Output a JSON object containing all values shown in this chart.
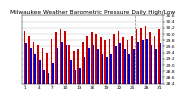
{
  "title": "Milwaukee Weather Barometric Pressure Daily High/Low",
  "highs": [
    30.1,
    29.95,
    29.75,
    29.65,
    29.55,
    29.4,
    29.85,
    30.05,
    30.15,
    30.1,
    29.65,
    29.45,
    29.5,
    29.75,
    29.95,
    30.05,
    30.0,
    29.9,
    29.8,
    29.85,
    30.0,
    30.1,
    29.9,
    29.8,
    29.95,
    30.15,
    30.2,
    30.25,
    30.05,
    29.95,
    30.15
  ],
  "lows": [
    29.7,
    29.55,
    29.35,
    29.15,
    28.85,
    28.75,
    29.05,
    29.55,
    29.75,
    29.65,
    29.15,
    28.85,
    28.9,
    29.25,
    29.55,
    29.65,
    29.5,
    29.35,
    29.25,
    29.35,
    29.6,
    29.7,
    29.5,
    29.35,
    29.5,
    29.75,
    29.8,
    29.85,
    29.65,
    29.5,
    29.7
  ],
  "ylim_min": 28.4,
  "ylim_max": 30.6,
  "ytick_values": [
    28.4,
    28.6,
    28.8,
    29.0,
    29.2,
    29.4,
    29.6,
    29.8,
    30.0,
    30.2,
    30.4,
    30.6
  ],
  "ytick_labels": [
    "28.4",
    "28.6",
    "28.8",
    "29.0",
    "29.2",
    "29.4",
    "29.6",
    "29.8",
    "30.0",
    "30.2",
    "30.4",
    "30.6"
  ],
  "bar_width": 0.38,
  "high_color": "#cc0000",
  "low_color": "#0000cc",
  "grid_color": "#bbbbbb",
  "bg_color": "#ffffff",
  "title_fontsize": 4.2,
  "tick_fontsize": 3.2,
  "dashed_line_x": [
    24.5
  ],
  "n_days": 31
}
